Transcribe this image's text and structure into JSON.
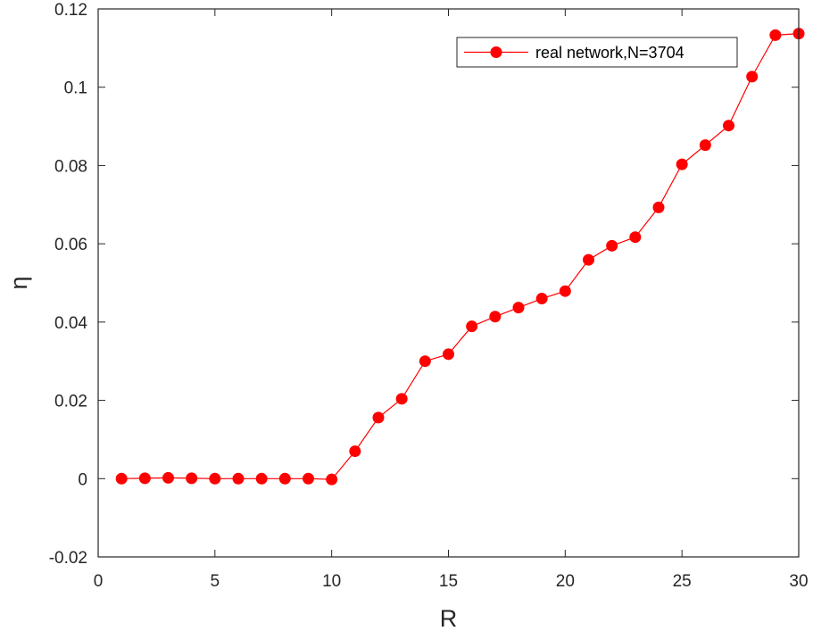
{
  "chart_data": {
    "type": "line",
    "title": "",
    "xlabel": "R",
    "ylabel": "η",
    "xlim": [
      0,
      30
    ],
    "ylim": [
      -0.02,
      0.12
    ],
    "xticks": [
      "0",
      "5",
      "10",
      "15",
      "20",
      "25",
      "30"
    ],
    "yticks": [
      "-0.02",
      "0",
      "0.02",
      "0.04",
      "0.06",
      "0.08",
      "0.1",
      "0.12"
    ],
    "grid": false,
    "legend_position": "top-right",
    "series": [
      {
        "name": "real network,N=3704",
        "color": "#ff0000",
        "marker": "circle",
        "x": [
          1,
          2,
          3,
          4,
          5,
          6,
          7,
          8,
          9,
          10,
          11,
          12,
          13,
          14,
          15,
          16,
          17,
          18,
          19,
          20,
          21,
          22,
          23,
          24,
          25,
          26,
          27,
          28,
          29,
          30
        ],
        "values": [
          0.0,
          0.0001,
          0.0002,
          0.0001,
          0.0,
          0.0,
          0.0,
          0.0,
          0.0,
          -0.0002,
          0.007,
          0.0156,
          0.0204,
          0.03,
          0.0318,
          0.0389,
          0.0414,
          0.0437,
          0.046,
          0.0479,
          0.0559,
          0.0595,
          0.0617,
          0.0693,
          0.0803,
          0.0852,
          0.0902,
          0.1027,
          0.1133,
          0.1137
        ]
      }
    ]
  }
}
